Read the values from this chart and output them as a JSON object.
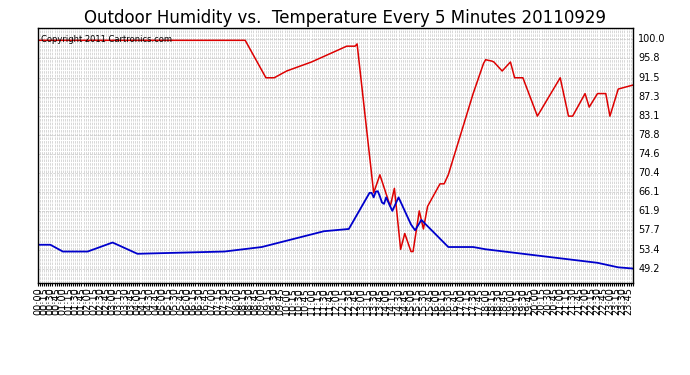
{
  "title": "Outdoor Humidity vs.  Temperature Every 5 Minutes 20110929",
  "copyright_text": "Copyright 2011 Cartronics.com",
  "background_color": "#ffffff",
  "plot_bg_color": "#ffffff",
  "grid_color": "#c8c8c8",
  "red_line_color": "#dd0000",
  "blue_line_color": "#0000cc",
  "y_ticks": [
    49.2,
    53.4,
    57.7,
    61.9,
    66.1,
    70.4,
    74.6,
    78.8,
    83.1,
    87.3,
    91.5,
    95.8,
    100.0
  ],
  "y_min": 46.0,
  "y_max": 102.5,
  "title_fontsize": 12,
  "axis_fontsize": 7.0
}
